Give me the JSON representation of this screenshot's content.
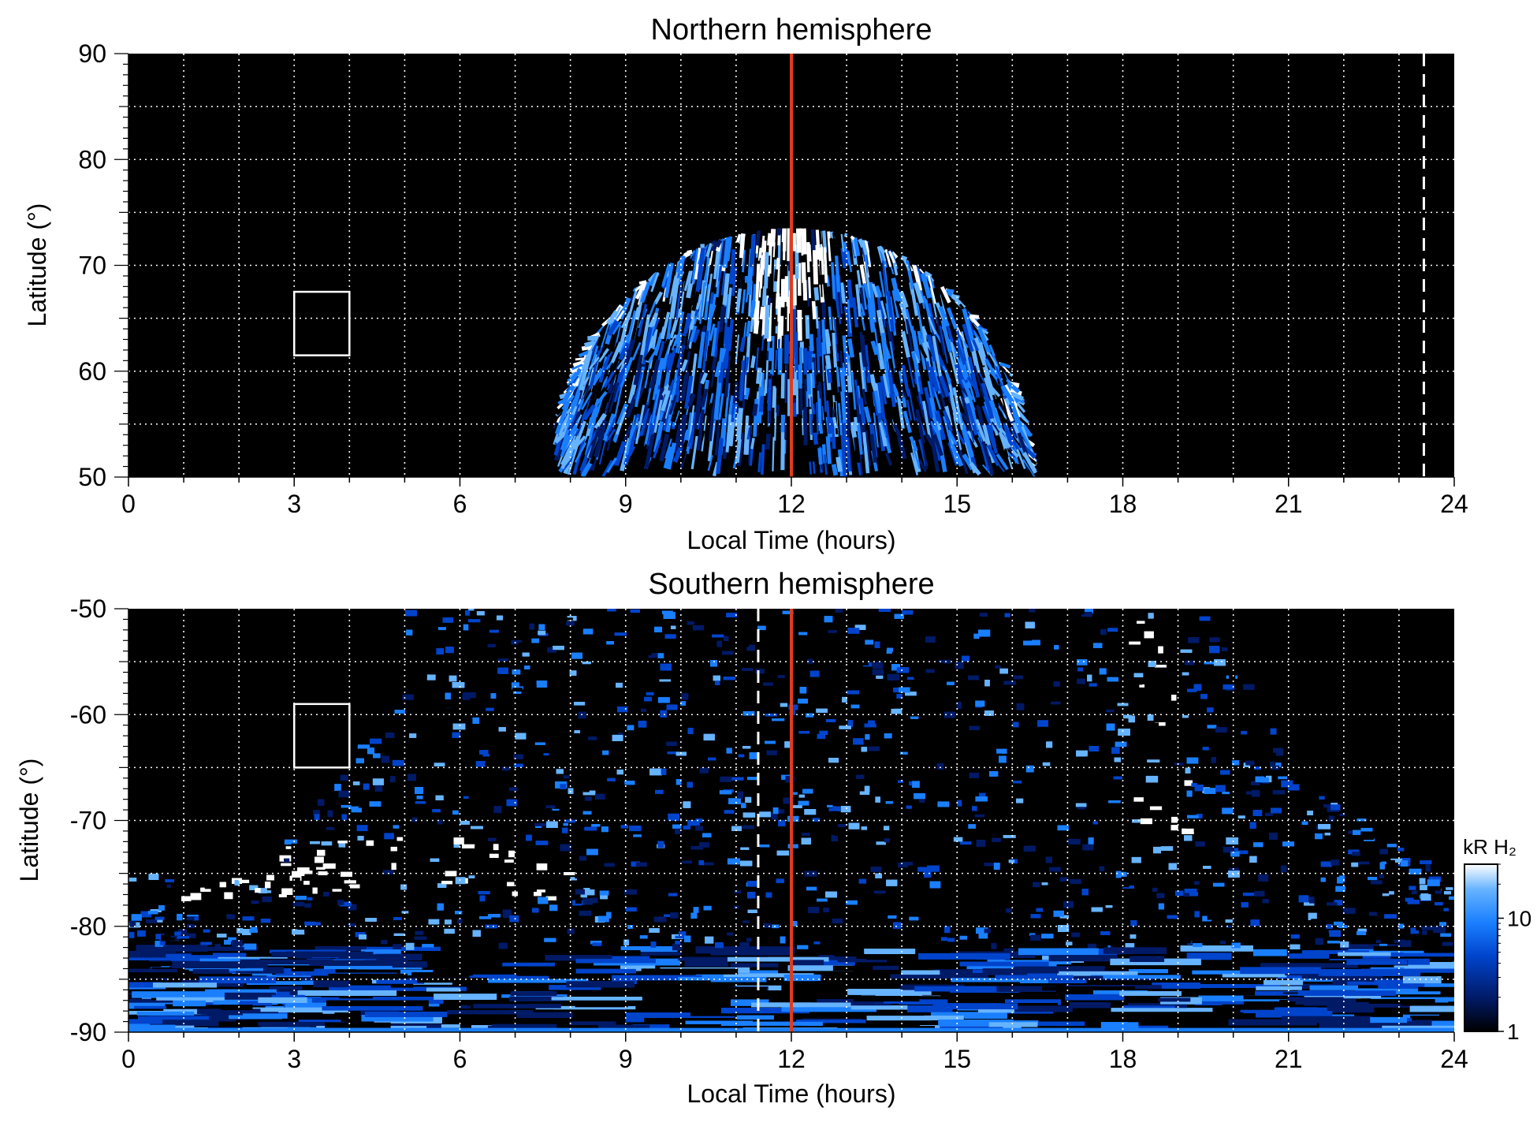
{
  "chart_data": [
    {
      "type": "heatmap",
      "title": "Northern hemisphere",
      "xlabel": "Local Time (hours)",
      "ylabel": "Latitude (°)",
      "xlim": [
        0,
        24
      ],
      "ylim": [
        50,
        90
      ],
      "xticks": [
        0,
        3,
        6,
        9,
        12,
        15,
        18,
        21,
        24
      ],
      "yticks": [
        50,
        60,
        70,
        80,
        90
      ],
      "grid": true,
      "reference_line_solid": {
        "x": 12,
        "color": "#e03c1c"
      },
      "reference_line_dashed": {
        "x": 23.45,
        "color": "#ffffff"
      },
      "box": {
        "x": [
          3,
          4
        ],
        "y": [
          61.5,
          67.5
        ]
      },
      "emission_region": {
        "lt_range": [
          7.7,
          16.6
        ],
        "max_lat": 73.5,
        "bright_center_lt": 12
      }
    },
    {
      "type": "heatmap",
      "title": "Southern hemisphere",
      "xlabel": "Local Time (hours)",
      "ylabel": "Latitude (°)",
      "xlim": [
        0,
        24
      ],
      "ylim": [
        -90,
        -50
      ],
      "xticks": [
        0,
        3,
        6,
        9,
        12,
        15,
        18,
        21,
        24
      ],
      "yticks": [
        -90,
        -80,
        -70,
        -60,
        -50
      ],
      "grid": true,
      "reference_line_solid": {
        "x": 12,
        "color": "#e03c1c"
      },
      "reference_line_dashed": {
        "x": 11.4,
        "color": "#ffffff"
      },
      "box": {
        "x": [
          3,
          4
        ],
        "y": [
          -65,
          -59
        ]
      },
      "colorbar": {
        "label": "kR H₂",
        "ticks": [
          1,
          10
        ],
        "scale": "log",
        "range": [
          1,
          30
        ]
      }
    }
  ],
  "colors": {
    "accent_red": "#e03c1c",
    "cmap": [
      "#000000",
      "#001a66",
      "#0044cc",
      "#1a7fff",
      "#66b3ff",
      "#ffffff"
    ]
  }
}
